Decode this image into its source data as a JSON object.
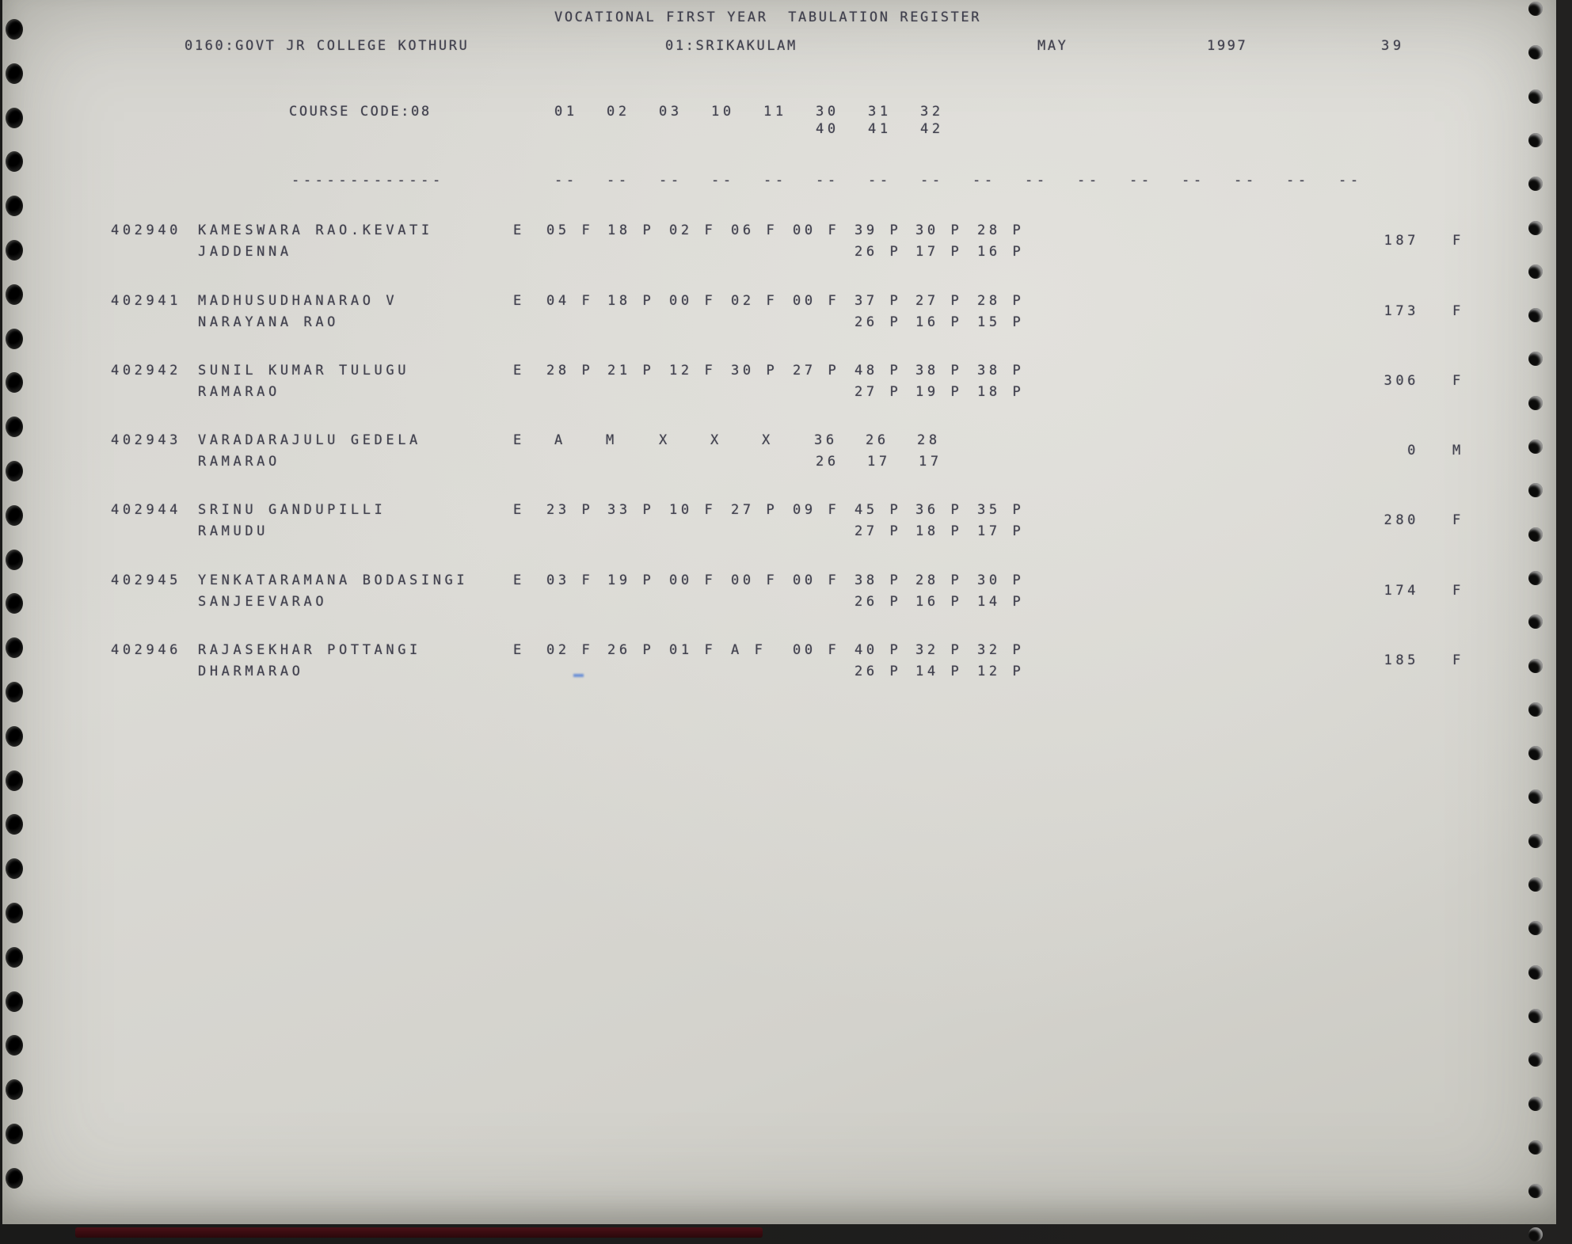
{
  "page": {
    "title": "VOCATIONAL FIRST YEAR  TABULATION REGISTER",
    "college": "0160:GOVT JR COLLEGE KOTHURU",
    "district": "01:SRIKAKULAM",
    "month": "MAY",
    "year": "1997",
    "page_number": "39"
  },
  "course": {
    "label": "COURSE CODE:08",
    "underline": "-------------",
    "dash": "--",
    "columns_row1": [
      "01",
      "02",
      "03",
      "10",
      "11",
      "30",
      "31",
      "32"
    ],
    "columns_row2": [
      "40",
      "41",
      "42"
    ]
  },
  "students": [
    {
      "reg_no": "402940",
      "name": "KAMESWARA RAO.KEVATI",
      "father_name": "JADDENNA",
      "medium": "E",
      "marks1": [
        "05 F",
        "18 P",
        "02 F",
        "06 F",
        "00 F",
        "39 P",
        "30 P",
        "28 P"
      ],
      "marks2": [
        "26 P",
        "17 P",
        "16 P"
      ],
      "total": "187",
      "result": "F"
    },
    {
      "reg_no": "402941",
      "name": "MADHUSUDHANARAO V",
      "father_name": "NARAYANA RAO",
      "medium": "E",
      "marks1": [
        "04 F",
        "18 P",
        "00 F",
        "02 F",
        "00 F",
        "37 P",
        "27 P",
        "28 P"
      ],
      "marks2": [
        "26 P",
        "16 P",
        "15 P"
      ],
      "total": "173",
      "result": "F"
    },
    {
      "reg_no": "402942",
      "name": "SUNIL KUMAR TULUGU",
      "father_name": "RAMARAO",
      "medium": "E",
      "marks1": [
        "28 P",
        "21 P",
        "12 F",
        "30 P",
        "27 P",
        "48 P",
        "38 P",
        "38 P"
      ],
      "marks2": [
        "27 P",
        "19 P",
        "18 P"
      ],
      "total": "306",
      "result": "F"
    },
    {
      "reg_no": "402943",
      "name": "VARADARAJULU GEDELA",
      "father_name": "RAMARAO",
      "medium": "E",
      "marks1": [
        "A",
        "M",
        "X",
        "X",
        "X",
        "36",
        "26",
        "28"
      ],
      "marks2": [
        "26",
        "17",
        "17"
      ],
      "total": "0",
      "result": "M"
    },
    {
      "reg_no": "402944",
      "name": "SRINU GANDUPILLI",
      "father_name": "RAMUDU",
      "medium": "E",
      "marks1": [
        "23 P",
        "33 P",
        "10 F",
        "27 P",
        "09 F",
        "45 P",
        "36 P",
        "35 P"
      ],
      "marks2": [
        "27 P",
        "18 P",
        "17 P"
      ],
      "total": "280",
      "result": "F"
    },
    {
      "reg_no": "402945",
      "name": "YENKATARAMANA BODASINGI",
      "father_name": "SANJEEVARAO",
      "medium": "E",
      "marks1": [
        "03 F",
        "19 P",
        "00 F",
        "00 F",
        "00 F",
        "38 P",
        "28 P",
        "30 P"
      ],
      "marks2": [
        "26 P",
        "16 P",
        "14 P"
      ],
      "total": "174",
      "result": "F"
    },
    {
      "reg_no": "402946",
      "name": "RAJASEKHAR POTTANGI",
      "father_name": "DHARMARAO",
      "medium": "E",
      "marks1": [
        "02 F",
        "26 P",
        "01 F",
        "A F",
        "00 F",
        "40 P",
        "32 P",
        "32 P"
      ],
      "marks2": [
        "26 P",
        "14 P",
        "12 P"
      ],
      "total": "185",
      "result": "F"
    }
  ],
  "colors": {
    "paper": "#d8d7d2",
    "ink": "#38384a",
    "bottom_bar": "#4a1016",
    "artifact_blue": "#4a79d6"
  }
}
